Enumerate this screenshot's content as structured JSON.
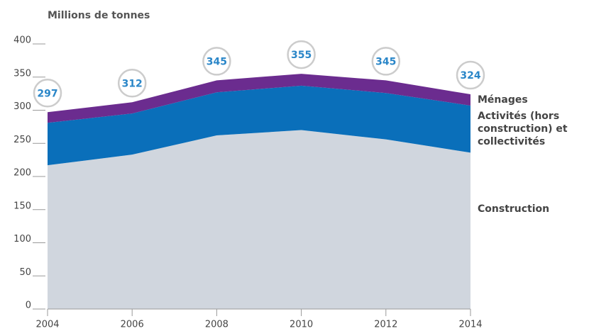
{
  "chart_data": {
    "type": "stacked_area",
    "title": "Millions de tonnes",
    "x": [
      2004,
      2006,
      2008,
      2010,
      2012,
      2014
    ],
    "series": [
      {
        "name": "Construction",
        "color": "#d0d6de",
        "values": [
          217,
          233,
          262,
          270,
          256,
          236
        ]
      },
      {
        "name": "Activités (hors construction) et collectivités",
        "color": "#0a6fba",
        "values": [
          64,
          62,
          65,
          67,
          70,
          71
        ]
      },
      {
        "name": "Ménages",
        "color": "#6b2c8f",
        "values": [
          16,
          17,
          18,
          18,
          19,
          17
        ]
      }
    ],
    "totals": [
      297,
      312,
      345,
      355,
      345,
      324
    ],
    "xlim": [
      2004,
      2014
    ],
    "xticks": [
      2004,
      2006,
      2008,
      2010,
      2012,
      2014
    ],
    "ylim": [
      0,
      400
    ],
    "yticks": [
      0,
      50,
      100,
      150,
      200,
      250,
      300,
      350,
      400
    ]
  }
}
